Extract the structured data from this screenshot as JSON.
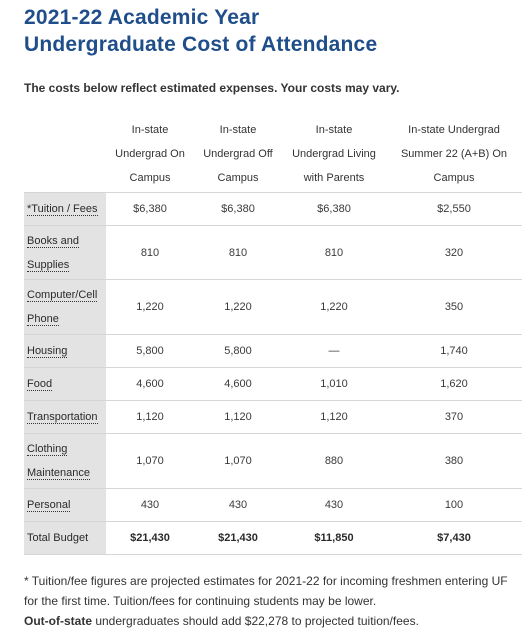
{
  "heading": {
    "line1": "2021-22 Academic Year",
    "line2": "Undergraduate Cost of Attendance"
  },
  "subtitle": "The costs below reflect estimated expenses.  Your costs may vary.",
  "table": {
    "columns": [
      [
        "In-state",
        "Undergrad On",
        "Campus"
      ],
      [
        "In-state",
        "Undergrad Off",
        "Campus"
      ],
      [
        "In-state",
        "Undergrad Living",
        "with Parents"
      ],
      [
        "In-state Undergrad",
        "Summer 22 (A+B) On",
        "Campus"
      ]
    ],
    "rows": [
      {
        "label": [
          "*Tuition / Fees"
        ],
        "values": [
          "$6,380",
          "$6,380",
          "$6,380",
          "$2,550"
        ]
      },
      {
        "label": [
          "Books and",
          "Supplies"
        ],
        "values": [
          "810",
          "810",
          "810",
          "320"
        ]
      },
      {
        "label": [
          "Computer/Cell",
          "Phone"
        ],
        "values": [
          "1,220",
          "1,220",
          "1,220",
          "350"
        ]
      },
      {
        "label": [
          "Housing"
        ],
        "values": [
          "5,800",
          "5,800",
          "—",
          "1,740"
        ]
      },
      {
        "label": [
          "Food"
        ],
        "values": [
          "4,600",
          "4,600",
          "1,010",
          "1,620"
        ]
      },
      {
        "label": [
          "Transportation"
        ],
        "values": [
          "1,120",
          "1,120",
          "1,120",
          "370"
        ]
      },
      {
        "label": [
          "Clothing",
          "Maintenance"
        ],
        "values": [
          "1,070",
          "1,070",
          "880",
          "380"
        ]
      },
      {
        "label": [
          "Personal"
        ],
        "values": [
          "430",
          "430",
          "430",
          "100"
        ]
      }
    ],
    "total": {
      "label": "Total Budget",
      "values": [
        "$21,430",
        "$21,430",
        "$11,850",
        "$7,430"
      ]
    }
  },
  "notes": {
    "footnote": "* Tuition/fee figures are projected estimates for 2021-22 for incoming freshmen entering UF for the first time. Tuition/fees for continuing students may be lower.",
    "oos_bold": "Out-of-state",
    "oos_rest": " undergraduates should add $22,278 to projected tuition/fees."
  }
}
